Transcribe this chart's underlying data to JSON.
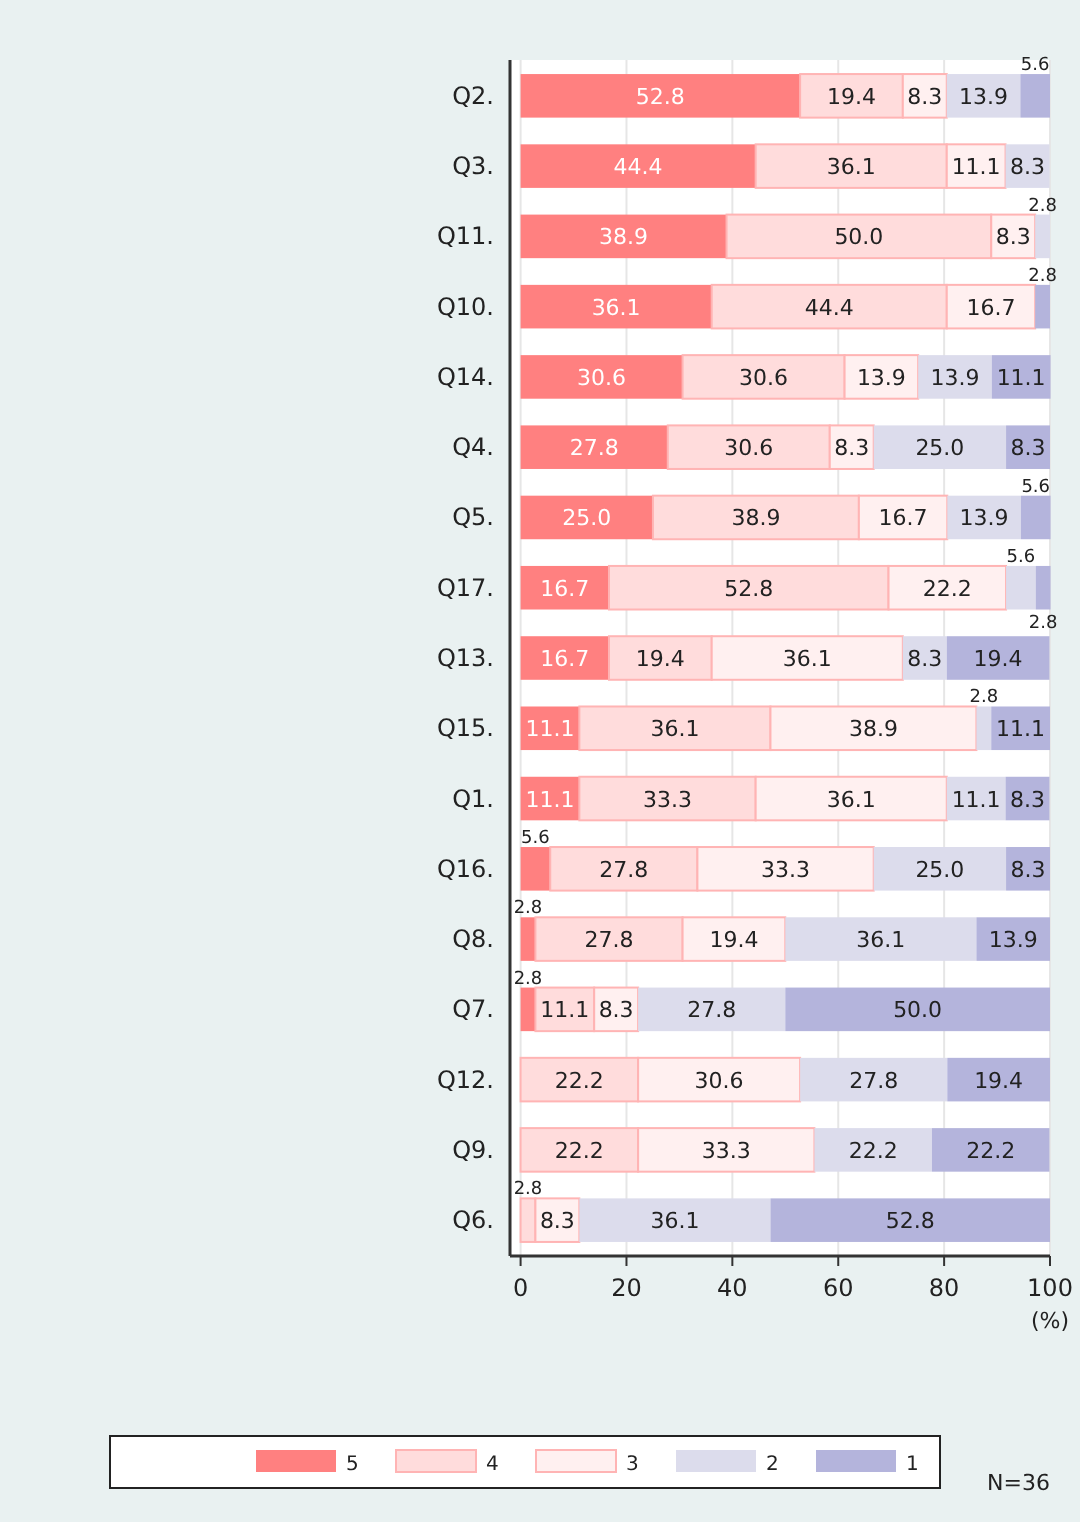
{
  "chart_data": {
    "type": "bar",
    "orientation": "horizontal",
    "stacked": true,
    "categories": [
      "Q2.",
      "Q3.",
      "Q11.",
      "Q10.",
      "Q14.",
      "Q4.",
      "Q5.",
      "Q17.",
      "Q13.",
      "Q15.",
      "Q1.",
      "Q16.",
      "Q8.",
      "Q7.",
      "Q12.",
      "Q9.",
      "Q6."
    ],
    "series": [
      {
        "name": "5",
        "color": "#ff8080",
        "values": [
          52.8,
          44.4,
          38.9,
          36.1,
          30.6,
          27.8,
          25.0,
          16.7,
          16.7,
          11.1,
          11.1,
          5.6,
          2.8,
          2.8,
          null,
          null,
          null
        ],
        "value_labels": [
          "52.8",
          "44.4",
          "38.9",
          "36.1",
          "30.6",
          "27.8",
          "25.0",
          "16.7",
          "16.7",
          "11.1",
          "11.1",
          "5.6",
          "2.8",
          "2.8",
          null,
          null,
          null
        ]
      },
      {
        "name": "4",
        "color": "#ffdcdc",
        "values": [
          19.4,
          36.1,
          50.0,
          44.4,
          30.6,
          30.6,
          38.9,
          52.8,
          19.4,
          36.1,
          33.3,
          27.8,
          27.8,
          11.1,
          22.2,
          22.2,
          2.8
        ],
        "value_labels": [
          "19.4",
          "36.1",
          "50.0",
          "44.4",
          "30.6",
          "30.6",
          "38.9",
          "52.8",
          "19.4",
          "36.1",
          "33.3",
          "27.8",
          "27.8",
          "11.1",
          "22.2",
          "22.2",
          "2.8"
        ]
      },
      {
        "name": "3",
        "color": "#fff0f0",
        "values": [
          8.3,
          11.1,
          8.3,
          16.7,
          13.9,
          8.3,
          16.7,
          22.2,
          36.1,
          38.9,
          36.1,
          33.3,
          19.4,
          8.3,
          30.6,
          33.3,
          8.3
        ],
        "value_labels": [
          "8.3",
          "11.1",
          "8.3",
          "16.7",
          "13.9",
          "8.3",
          "16.7",
          "22.2",
          "36.1",
          "38.9",
          "36.1",
          "33.3",
          "19.4",
          "8.3",
          "30.6",
          "33.3",
          "8.3"
        ]
      },
      {
        "name": "2",
        "color": "#dcdcec",
        "values": [
          13.9,
          8.3,
          2.8,
          null,
          13.9,
          25.0,
          13.9,
          5.6,
          8.3,
          2.8,
          11.1,
          25.0,
          36.1,
          27.8,
          27.8,
          22.2,
          36.1
        ],
        "value_labels": [
          "13.9",
          "8.3",
          "2.8",
          null,
          "13.9",
          "25.0",
          "13.9",
          "5.6",
          "8.3",
          "2.8",
          "11.1",
          "25.0",
          "36.1",
          "27.8",
          "27.8",
          "22.2",
          "36.1"
        ]
      },
      {
        "name": "1",
        "color": "#b4b4dc",
        "values": [
          5.6,
          null,
          null,
          2.8,
          11.1,
          8.3,
          5.6,
          2.8,
          19.4,
          11.1,
          8.3,
          8.3,
          13.9,
          50.0,
          19.4,
          22.2,
          52.8
        ],
        "value_labels": [
          "5.6",
          null,
          null,
          "2.8",
          "11.1",
          "8.3",
          "5.6",
          "2.8",
          "19.4",
          "11.1",
          "8.3",
          "8.3",
          "13.9",
          "50.0",
          "19.4",
          "22.2",
          "52.8"
        ]
      }
    ],
    "xlim": [
      -2,
      100
    ],
    "xticks": [
      0,
      20,
      40,
      60,
      80,
      100
    ],
    "xlabel": "(%)",
    "grid": "x",
    "legend": "bottom",
    "annotations": [
      "N=36"
    ]
  }
}
